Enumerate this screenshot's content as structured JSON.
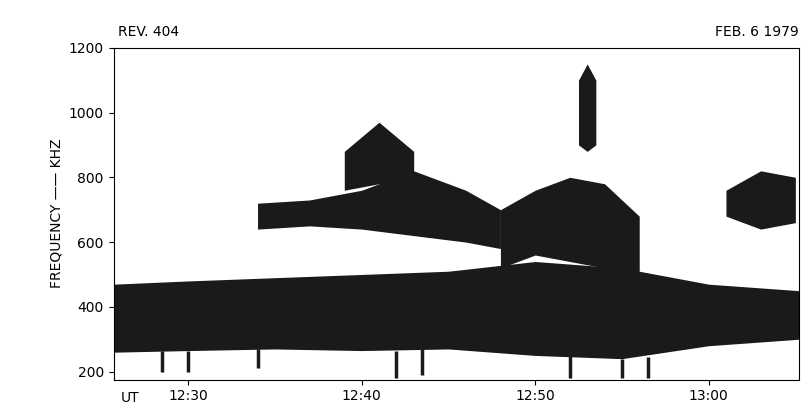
{
  "chart_data": {
    "type": "spectrogram",
    "title": "REV. 404",
    "date": "FEB. 6 1979",
    "x_label": "UT",
    "y_label": "FREQUENCY —— KHZ",
    "xlim": [
      25.7,
      65.2
    ],
    "xticks": [
      {
        "value": 30,
        "label": "12:30"
      },
      {
        "value": 40,
        "label": "12:40"
      },
      {
        "value": 50,
        "label": "12:50"
      },
      {
        "value": 60,
        "label": "13:00"
      }
    ],
    "ylim": [
      175,
      1200
    ],
    "yticks": [
      200,
      400,
      600,
      800,
      1000,
      1200
    ],
    "color": "#1a1a1a",
    "grid": false,
    "bands": [
      {
        "x": [
          25.7,
          30,
          35,
          40,
          45,
          50,
          55,
          60,
          65.2
        ],
        "lower": [
          260,
          265,
          270,
          265,
          270,
          250,
          240,
          280,
          300
        ],
        "upper": [
          470,
          480,
          490,
          500,
          510,
          540,
          520,
          470,
          450
        ]
      },
      {
        "x": [
          34,
          37,
          40,
          43,
          46,
          48
        ],
        "lower": [
          640,
          650,
          640,
          620,
          600,
          580
        ],
        "upper": [
          720,
          730,
          760,
          820,
          760,
          700
        ]
      },
      {
        "x": [
          48,
          50,
          52,
          54,
          56
        ],
        "lower": [
          520,
          560,
          540,
          520,
          500
        ],
        "upper": [
          700,
          760,
          800,
          780,
          680
        ]
      },
      {
        "x": [
          61,
          63,
          65
        ],
        "lower": [
          680,
          640,
          660
        ],
        "upper": [
          760,
          820,
          800
        ]
      },
      {
        "x": [
          39,
          41,
          43
        ],
        "lower": [
          760,
          780,
          760
        ],
        "upper": [
          880,
          970,
          880
        ]
      },
      {
        "x": [
          52.5,
          53,
          53.5
        ],
        "lower": [
          900,
          880,
          900
        ],
        "upper": [
          1100,
          1150,
          1100
        ]
      }
    ],
    "spikes": [
      {
        "x": 28.5,
        "low": 200,
        "high": 265
      },
      {
        "x": 30,
        "low": 200,
        "high": 265
      },
      {
        "x": 34,
        "low": 210,
        "high": 270
      },
      {
        "x": 42,
        "low": 180,
        "high": 265
      },
      {
        "x": 43.5,
        "low": 190,
        "high": 270
      },
      {
        "x": 52,
        "low": 180,
        "high": 250
      },
      {
        "x": 55,
        "low": 180,
        "high": 240
      },
      {
        "x": 56.5,
        "low": 180,
        "high": 245
      }
    ]
  }
}
